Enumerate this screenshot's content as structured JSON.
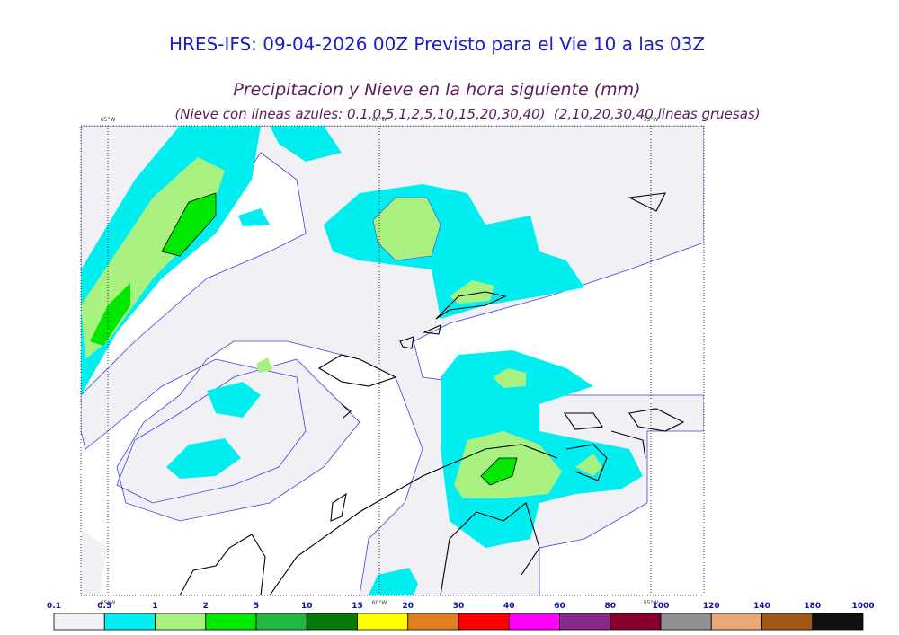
{
  "header": {
    "title": "HRES-IFS: 09-04-2026 00Z Previsto para el Vie 10 a las 03Z",
    "subtitle": "Precipitacion y Nieve en la hora siguiente (mm)",
    "note": "(Nieve con lineas azules: 0.1,0.5,1,2,5,10,15,20,30,40)  (2,10,20,30,40 lineas gruesas)"
  },
  "map": {
    "meridians": [
      "65°W",
      "60°W",
      "55°W"
    ]
  },
  "colorbar": {
    "bounds": [
      0.1,
      0.5,
      1,
      2,
      5,
      10,
      15,
      20,
      30,
      40,
      60,
      80,
      100,
      120,
      140,
      180,
      1000
    ],
    "colors": [
      "#f0f0f5",
      "#00eef0",
      "#a8f080",
      "#00e800",
      "#20b840",
      "#087808",
      "#ffff00",
      "#e08020",
      "#ff0000",
      "#ff00ff",
      "#882888",
      "#880030",
      "#909090",
      "#e8a878",
      "#a05818",
      "#101010"
    ]
  }
}
